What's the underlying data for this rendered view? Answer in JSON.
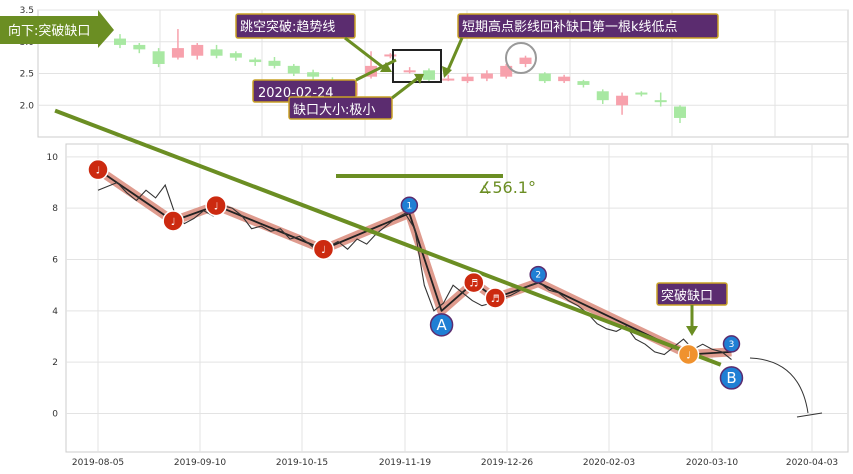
{
  "chart_data": [
    {
      "type": "candlestick",
      "panel": "top",
      "ylim": [
        1.5,
        3.5
      ],
      "yticks": [
        "3.5",
        "3.0",
        "2.5",
        "2.0"
      ],
      "grid": true,
      "candles": [
        {
          "o": 3.05,
          "c": 2.95,
          "h": 3.12,
          "l": 2.9
        },
        {
          "o": 2.95,
          "c": 2.88,
          "h": 2.98,
          "l": 2.82
        },
        {
          "o": 2.85,
          "c": 2.65,
          "h": 2.9,
          "l": 2.6
        },
        {
          "o": 2.75,
          "c": 2.9,
          "h": 3.2,
          "l": 2.72
        },
        {
          "o": 2.78,
          "c": 2.95,
          "h": 2.98,
          "l": 2.72
        },
        {
          "o": 2.88,
          "c": 2.78,
          "h": 2.95,
          "l": 2.74
        },
        {
          "o": 2.82,
          "c": 2.75,
          "h": 2.85,
          "l": 2.7
        },
        {
          "o": 2.72,
          "c": 2.68,
          "h": 2.75,
          "l": 2.62
        },
        {
          "o": 2.7,
          "c": 2.62,
          "h": 2.76,
          "l": 2.58
        },
        {
          "o": 2.62,
          "c": 2.5,
          "h": 2.65,
          "l": 2.46
        },
        {
          "o": 2.52,
          "c": 2.45,
          "h": 2.56,
          "l": 2.4
        },
        {
          "o": 2.4,
          "c": 2.32,
          "h": 2.44,
          "l": 2.28
        },
        {
          "o": 2.15,
          "c": 2.35,
          "h": 2.4,
          "l": 2.1
        },
        {
          "o": 2.45,
          "c": 2.62,
          "h": 2.85,
          "l": 2.42
        },
        {
          "o": 2.8,
          "c": 2.8,
          "h": 2.82,
          "l": 2.74
        },
        {
          "o": 2.55,
          "c": 2.55,
          "h": 2.6,
          "l": 2.5
        },
        {
          "o": 2.55,
          "c": 2.4,
          "h": 2.58,
          "l": 2.38
        },
        {
          "o": 2.42,
          "c": 2.42,
          "h": 2.48,
          "l": 2.38
        },
        {
          "o": 2.38,
          "c": 2.45,
          "h": 2.5,
          "l": 2.35
        },
        {
          "o": 2.42,
          "c": 2.5,
          "h": 2.55,
          "l": 2.38
        },
        {
          "o": 2.45,
          "c": 2.62,
          "h": 2.65,
          "l": 2.42
        },
        {
          "o": 2.65,
          "c": 2.75,
          "h": 2.78,
          "l": 2.6
        },
        {
          "o": 2.5,
          "c": 2.38,
          "h": 2.52,
          "l": 2.35
        },
        {
          "o": 2.38,
          "c": 2.45,
          "h": 2.48,
          "l": 2.35
        },
        {
          "o": 2.38,
          "c": 2.32,
          "h": 2.4,
          "l": 2.28
        },
        {
          "o": 2.22,
          "c": 2.08,
          "h": 2.25,
          "l": 2.02
        },
        {
          "o": 2.0,
          "c": 2.15,
          "h": 2.2,
          "l": 1.85
        },
        {
          "o": 2.2,
          "c": 2.17,
          "h": 2.22,
          "l": 2.14
        },
        {
          "o": 2.08,
          "c": 2.05,
          "h": 2.2,
          "l": 1.98
        },
        {
          "o": 1.98,
          "c": 1.8,
          "h": 2.0,
          "l": 1.72
        }
      ]
    },
    {
      "type": "line",
      "panel": "bottom",
      "ylim": [
        -1.5,
        10.5
      ],
      "yticks": [
        "10",
        "8",
        "6",
        "4",
        "2",
        "0"
      ],
      "xticks": [
        "2019-08-05",
        "2019-09-10",
        "2019-10-15",
        "2019-11-19",
        "2019-12-26",
        "2020-02-03",
        "2020-03-10",
        "2020-04-03"
      ],
      "grid": true,
      "series": [
        {
          "role": "price",
          "values": [
            8.7,
            8.85,
            9.0,
            8.6,
            8.3,
            8.7,
            8.4,
            8.9,
            7.8,
            7.4,
            7.6,
            7.9,
            7.7,
            8.1,
            8.0,
            7.7,
            7.2,
            7.3,
            7.1,
            7.2,
            6.8,
            6.9,
            6.6,
            6.3,
            6.5,
            6.7,
            6.4,
            6.8,
            6.6,
            7.0,
            7.3,
            7.6,
            7.8,
            7.2,
            5.0,
            4.0,
            4.3,
            5.0,
            4.7,
            4.4,
            4.2,
            4.3,
            4.5,
            4.6,
            4.8,
            5.0,
            5.1,
            4.8,
            4.7,
            4.4,
            4.2,
            3.9,
            3.5,
            3.3,
            3.2,
            3.4,
            2.9,
            2.7,
            2.4,
            2.3,
            2.6,
            2.9,
            2.5,
            2.7,
            2.5,
            2.4,
            2.1
          ]
        },
        {
          "role": "wave",
          "points": [
            [
              2019.59,
              9.5
            ],
            [
              2019.66,
              7.5
            ],
            [
              2019.7,
              8.1
            ],
            [
              2019.8,
              6.4
            ],
            [
              2019.88,
              7.8
            ],
            [
              2019.91,
              4.0
            ],
            [
              2019.94,
              5.1
            ],
            [
              2019.96,
              4.5
            ],
            [
              2020.0,
              5.1
            ],
            [
              2020.14,
              2.3
            ],
            [
              2020.18,
              2.4
            ]
          ]
        }
      ],
      "trendline": [
        [
          2019.55,
          11.8
        ],
        [
          2020.17,
          1.9
        ]
      ],
      "angle_label": "∡56.1°",
      "wave_labels": [
        "1",
        "2",
        "3",
        "A",
        "B"
      ],
      "notes": [
        "♩",
        "♩",
        "♩",
        "♩",
        "♬",
        "♬",
        "♩"
      ]
    }
  ],
  "annotations": {
    "gap_direction": "向下:突破缺口",
    "jump_break": "跳空突破:趋势线",
    "short_high": "短期高点影线回补缺口第一根k线低点",
    "gap_date": "2020-02-24",
    "gap_size": "缺口大小:极小",
    "break_gap": "突破缺口"
  },
  "colors": {
    "up": "#f7a1ac",
    "down": "#a8e8a2",
    "trend": "#6b8e23",
    "wave": "#d98a7a",
    "price": "#333333",
    "callout": "#5b2c6f",
    "callout_border": "#c9a227"
  }
}
